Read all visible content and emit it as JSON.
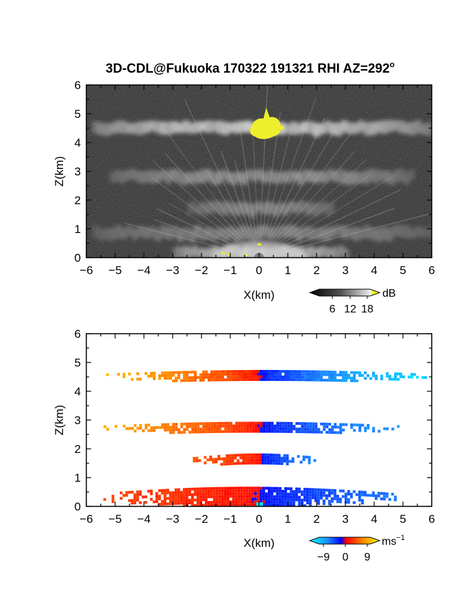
{
  "figure_title": "3D-CDL@Fukuoka 170322 191321 RHI AZ=292",
  "title_suffix": "o",
  "colors": {
    "background": "#ffffff",
    "plot_dark": "#202020",
    "highlight_yellow": "#ffff00",
    "velocity_positive": "#ff6a00",
    "velocity_negative": "#1030ff"
  },
  "chart_data": [
    {
      "type": "heatmap",
      "panel": "top",
      "quantity": "SNR",
      "xlabel": "X(km)",
      "ylabel": "Z(km)",
      "xlim": [
        -6,
        6
      ],
      "ylim": [
        0,
        6
      ],
      "xticks": [
        "−6",
        "−5",
        "−4",
        "−3",
        "−2",
        "−1",
        "0",
        "1",
        "2",
        "3",
        "4",
        "5",
        "6"
      ],
      "yticks": [
        "0",
        "1",
        "2",
        "3",
        "4",
        "5",
        "6"
      ],
      "colormap": "grayscale with yellow saturation above 18 dB",
      "colorbar": {
        "unit": "dB",
        "ticks": [
          "6",
          "12",
          "18"
        ],
        "range": [
          0,
          20
        ]
      },
      "layers": [
        {
          "z_center_km": 4.5,
          "x_range_km": [
            -5.8,
            5.8
          ],
          "peak_db": 20,
          "note_x_km": 0.2
        },
        {
          "z_center_km": 2.8,
          "x_range_km": [
            -5.2,
            5.2
          ],
          "peak_db": 11
        },
        {
          "z_center_km": 1.7,
          "x_range_km": [
            -2.5,
            2.5
          ],
          "peak_db": 9
        },
        {
          "z_center_km": 0.85,
          "x_range_km": [
            -5.8,
            5.8
          ],
          "peak_db": 9
        },
        {
          "z_center_km": 0.15,
          "x_range_km": [
            -3.0,
            3.0
          ],
          "peak_db": 18
        }
      ],
      "grid": false
    },
    {
      "type": "heatmap",
      "panel": "bottom",
      "quantity": "Doppler velocity",
      "xlabel": "X(km)",
      "ylabel": "Z(km)",
      "xlim": [
        -6,
        6
      ],
      "ylim": [
        0,
        6
      ],
      "xticks": [
        "−6",
        "−5",
        "−4",
        "−3",
        "−2",
        "−1",
        "0",
        "1",
        "2",
        "3",
        "4",
        "5",
        "6"
      ],
      "yticks": [
        "0",
        "1",
        "2",
        "3",
        "4",
        "5",
        "6"
      ],
      "colormap": "cyan-blue-red-yellow diverging",
      "colorbar": {
        "unit": "ms",
        "unit_exponent": "−1",
        "ticks": [
          "−9",
          "0",
          "9"
        ],
        "range": [
          -12,
          12
        ]
      },
      "layers": [
        {
          "z_center_km": 4.55,
          "x_range_km": [
            -5.5,
            5.8
          ],
          "velocity_at_xmin": 9,
          "velocity_at_xmax": -10
        },
        {
          "z_center_km": 2.75,
          "x_range_km": [
            -5.4,
            5.0
          ],
          "velocity_at_xmin": 8,
          "velocity_at_xmax": -7
        },
        {
          "z_center_km": 1.65,
          "x_range_km": [
            -2.3,
            2.1
          ],
          "velocity_at_xmin": 4,
          "velocity_at_xmax": -6
        },
        {
          "z_center_km": 0.35,
          "x_range_km": [
            -5.6,
            4.7
          ],
          "velocity_at_xmin": 3,
          "velocity_at_xmax": -5
        }
      ],
      "grid": false
    }
  ]
}
